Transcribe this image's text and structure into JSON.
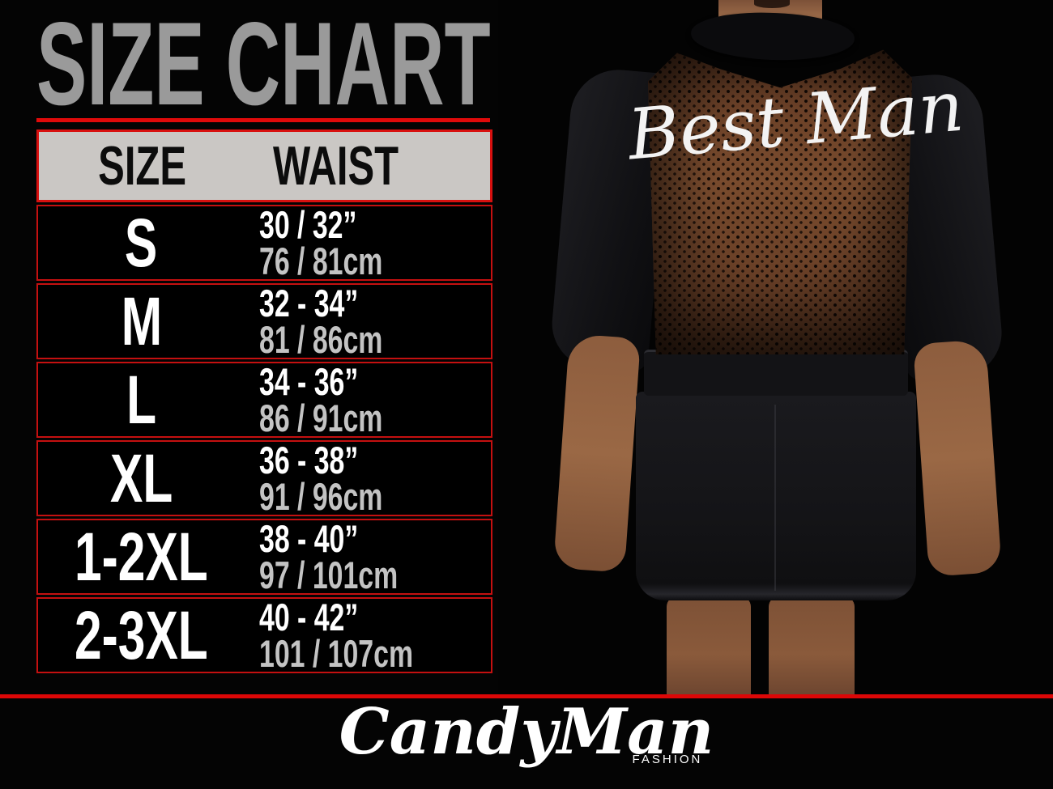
{
  "title": "SIZE CHART",
  "size_table": {
    "columns": [
      "SIZE",
      "WAIST"
    ],
    "rows": [
      {
        "size": "S",
        "waist_in": "30 / 32”",
        "waist_cm": "76 / 81cm"
      },
      {
        "size": "M",
        "waist_in": "32 - 34”",
        "waist_cm": "81 / 86cm"
      },
      {
        "size": "L",
        "waist_in": "34 - 36”",
        "waist_cm": "86 / 91cm"
      },
      {
        "size": "XL",
        "waist_in": "36 - 38”",
        "waist_cm": "91 / 96cm"
      },
      {
        "size": "1-2XL",
        "waist_in": "38 - 40”",
        "waist_cm": "97 / 101cm"
      },
      {
        "size": "2-3XL",
        "waist_in": "40 - 42”",
        "waist_cm": "101 / 107cm"
      }
    ]
  },
  "photo": {
    "garment_print": "Best Man"
  },
  "brand": {
    "name": "CandyMan",
    "tagline": "FASHION"
  },
  "colors": {
    "background": "#000000",
    "accent_red": "#d8100f",
    "title_gray": "#9a9a9a",
    "header_bg": "#cac7c4",
    "cm_text_gray": "#c3c3c3",
    "mesh_brown": "#6b4128",
    "white": "#ffffff"
  },
  "chart_data": {
    "type": "table",
    "title": "SIZE CHART",
    "columns": [
      "SIZE",
      "WAIST (inches)",
      "WAIST (cm)"
    ],
    "rows": [
      [
        "S",
        "30 / 32”",
        "76 / 81cm"
      ],
      [
        "M",
        "32 - 34”",
        "81 / 86cm"
      ],
      [
        "L",
        "34 - 36”",
        "86 / 91cm"
      ],
      [
        "XL",
        "36 - 38”",
        "91 / 96cm"
      ],
      [
        "1-2XL",
        "38 - 40”",
        "97 / 101cm"
      ],
      [
        "2-3XL",
        "40 - 42”",
        "101 / 107cm"
      ]
    ]
  }
}
